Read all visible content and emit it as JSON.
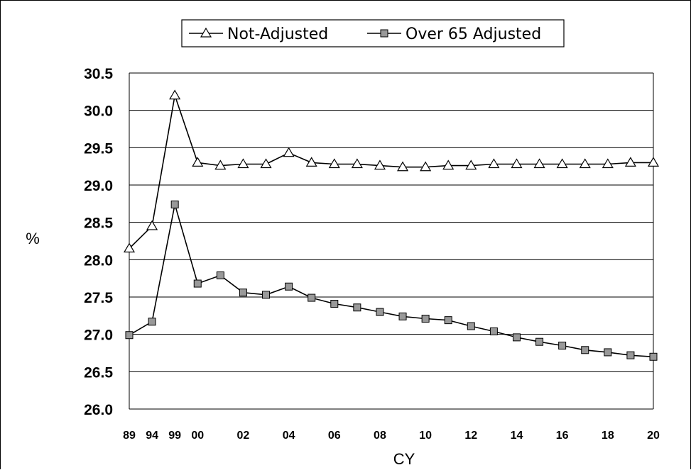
{
  "chart_data": {
    "type": "line",
    "title": "",
    "xlabel": "CY",
    "ylabel": "%",
    "ylim": [
      26.0,
      30.5
    ],
    "yticks": [
      "30.5",
      "30.0",
      "29.5",
      "29.0",
      "28.5",
      "28.0",
      "27.5",
      "27.0",
      "26.5",
      "26.0"
    ],
    "grid": true,
    "legend_position": "top-center",
    "categories": [
      "89",
      "94",
      "99",
      "00",
      "01",
      "02",
      "03",
      "04",
      "05",
      "06",
      "07",
      "08",
      "09",
      "10",
      "11",
      "12",
      "13",
      "14",
      "15",
      "16",
      "17",
      "18",
      "19",
      "20"
    ],
    "category_labels": [
      "89",
      "94",
      "99",
      "00",
      "",
      "02",
      "",
      "04",
      "",
      "06",
      "",
      "08",
      "",
      "10",
      "",
      "12",
      "",
      "14",
      "",
      "16",
      "",
      "18",
      "",
      "20"
    ],
    "series": [
      {
        "name": "Not-Adjusted",
        "marker": "triangle",
        "marker_fill": "#ffffff",
        "values": [
          28.15,
          28.45,
          30.2,
          29.3,
          29.26,
          29.28,
          29.28,
          29.43,
          29.3,
          29.28,
          29.28,
          29.26,
          29.24,
          29.24,
          29.26,
          29.26,
          29.28,
          29.28,
          29.28,
          29.28,
          29.28,
          29.28,
          29.3,
          29.3
        ]
      },
      {
        "name": "Over 65 Adjusted",
        "marker": "square",
        "marker_fill": "#999999",
        "values": [
          26.99,
          27.17,
          28.74,
          27.68,
          27.79,
          27.56,
          27.53,
          27.64,
          27.49,
          27.41,
          27.36,
          27.3,
          27.24,
          27.21,
          27.19,
          27.11,
          27.04,
          26.96,
          26.9,
          26.85,
          26.79,
          26.76,
          26.72,
          26.7
        ]
      }
    ]
  },
  "colors": {
    "line": "#000000",
    "gridline": "#000000",
    "square_marker": "#999999",
    "triangle_marker": "#ffffff"
  }
}
